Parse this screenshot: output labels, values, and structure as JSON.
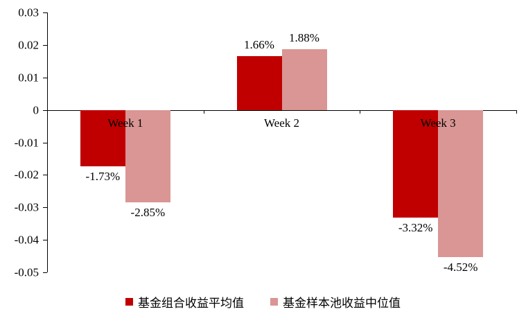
{
  "chart_data": {
    "type": "bar",
    "title": "",
    "xlabel": "",
    "ylabel": "",
    "categories": [
      "Week 1",
      "Week 2",
      "Week 3"
    ],
    "series": [
      {
        "name": "基金组合收益平均值",
        "color": "#C00000",
        "values": [
          -0.0173,
          0.0166,
          -0.0332
        ],
        "labels": [
          "-1.73%",
          "1.66%",
          "-3.32%"
        ]
      },
      {
        "name": "基金样本池收益中位值",
        "color": "#D99694",
        "values": [
          -0.0285,
          0.0188,
          -0.0452
        ],
        "labels": [
          "-2.85%",
          "1.88%",
          "-4.52%"
        ]
      }
    ],
    "ylim": [
      -0.05,
      0.03
    ],
    "yticks": [
      {
        "label": "0.03",
        "value": 0.03
      },
      {
        "label": "0.02",
        "value": 0.02
      },
      {
        "label": "0.01",
        "value": 0.01
      },
      {
        "label": "0",
        "value": 0
      },
      {
        "label": "-0.01",
        "value": -0.01
      },
      {
        "label": "-0.02",
        "value": -0.02
      },
      {
        "label": "-0.03",
        "value": -0.03
      },
      {
        "label": "-0.04",
        "value": -0.04
      },
      {
        "label": "-0.05",
        "value": -0.05
      }
    ],
    "grid": false,
    "legend_position": "bottom"
  }
}
